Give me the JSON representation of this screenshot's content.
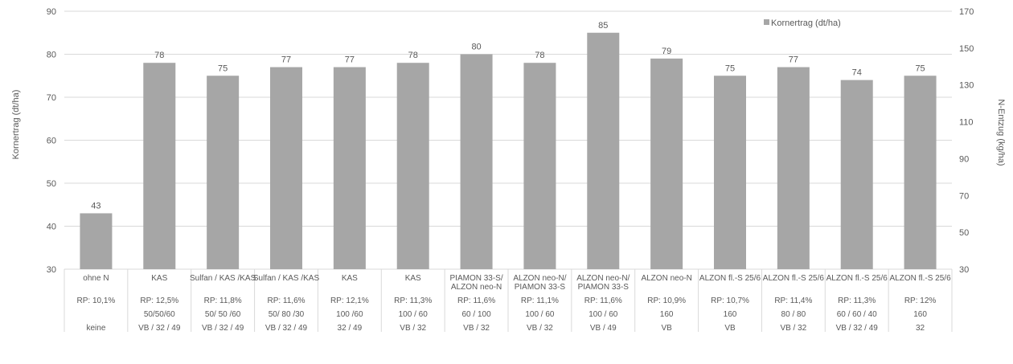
{
  "chart_data": {
    "type": "bar",
    "ylabel": "Kornertrag (dt/ha)",
    "y2label": "N-Entzug (kg/ha)",
    "ylim": [
      30,
      90
    ],
    "yticks": [
      30,
      40,
      50,
      60,
      70,
      80,
      90
    ],
    "y2lim": [
      30,
      170
    ],
    "y2ticks": [
      30,
      50,
      70,
      90,
      110,
      130,
      150,
      170
    ],
    "grid": true,
    "legend_position": "top-right",
    "series": [
      {
        "name": "Kornertrag (dt/ha)",
        "color": "#a6a6a6",
        "values": [
          43,
          78,
          75,
          77,
          77,
          78,
          80,
          78,
          85,
          79,
          75,
          77,
          74,
          75
        ],
        "data_labels": [
          "43",
          "78",
          "75",
          "77",
          "77",
          "78",
          "80",
          "78",
          "85",
          "79",
          "75",
          "77",
          "74",
          "75"
        ]
      }
    ],
    "categories": [
      {
        "name": [
          "ohne N"
        ],
        "rp": "RP: 10,1%",
        "dose": "",
        "timing": "keine"
      },
      {
        "name": [
          "KAS"
        ],
        "rp": "RP: 12,5%",
        "dose": "50/50/60",
        "timing": "VB / 32 / 49"
      },
      {
        "name": [
          "Sulfan / KAS /KAS"
        ],
        "rp": "RP: 11,8%",
        "dose": "50/ 50 /60",
        "timing": "VB / 32 / 49"
      },
      {
        "name": [
          "Sulfan / KAS /KAS"
        ],
        "rp": "RP: 11,6%",
        "dose": "50/ 80 /30",
        "timing": "VB / 32 / 49"
      },
      {
        "name": [
          "KAS"
        ],
        "rp": "RP: 12,1%",
        "dose": "100 /60",
        "timing": "32 / 49"
      },
      {
        "name": [
          "KAS"
        ],
        "rp": "RP: 11,3%",
        "dose": "100 / 60",
        "timing": "VB / 32"
      },
      {
        "name": [
          "PIAMON 33-S/",
          "ALZON neo-N"
        ],
        "rp": "RP: 11,6%",
        "dose": "60 / 100",
        "timing": "VB / 32"
      },
      {
        "name": [
          "ALZON neo-N/",
          "PIAMON 33-S"
        ],
        "rp": "RP: 11,1%",
        "dose": "100 / 60",
        "timing": "VB / 32"
      },
      {
        "name": [
          "ALZON neo-N/",
          "PIAMON 33-S"
        ],
        "rp": "RP: 11,6%",
        "dose": "100 / 60",
        "timing": "VB / 49"
      },
      {
        "name": [
          "ALZON neo-N"
        ],
        "rp": "RP: 10,9%",
        "dose": "160",
        "timing": "VB"
      },
      {
        "name": [
          "ALZON fl.-S 25/6"
        ],
        "rp": "RP: 10,7%",
        "dose": "160",
        "timing": "VB"
      },
      {
        "name": [
          "ALZON fl.-S 25/6"
        ],
        "rp": "RP: 11,4%",
        "dose": "80 / 80",
        "timing": "VB / 32"
      },
      {
        "name": [
          "ALZON fl.-S 25/6"
        ],
        "rp": "RP: 11,3%",
        "dose": "60 / 60 / 40",
        "timing": "VB / 32 / 49"
      },
      {
        "name": [
          "ALZON fl.-S 25/6"
        ],
        "rp": "RP: 12%",
        "dose": "160",
        "timing": "32"
      }
    ]
  }
}
